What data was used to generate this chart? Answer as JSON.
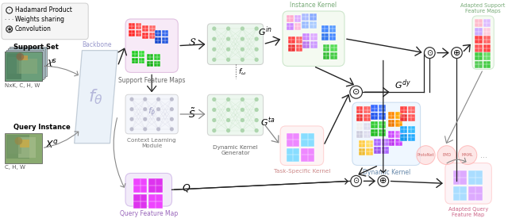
{
  "bg_color": "#ffffff",
  "legend_items": [
    {
      "label": "Hadamard Product"
    },
    {
      "label": "Weights sharing"
    },
    {
      "label": "Convolution"
    }
  ],
  "support_set_label": "Support Set",
  "support_xs_label": "$\\mathcal{X}^s$",
  "support_dims": "NxK, C, H, W",
  "query_label": "Query Instance",
  "query_xq_label": "$X^q$",
  "query_dims": "C, H, W",
  "backbone_label": "Backbone",
  "backbone_func": "$f_\\theta$",
  "backbone_color": "#dce8f5",
  "support_feat_label": "Support Feature Maps",
  "support_feat_color": "#f2daf2",
  "context_module_label": "Context Learning\nModule",
  "context_func": "$f_\\phi$",
  "context_color": "#e8ecf8",
  "dkg_label": "Dynamic Kernel\nGenerator",
  "dkg_color": "#e8f2e8",
  "query_feat_label": "Query Feature Map",
  "query_feat_color": "#e8dcf5",
  "instance_kernel_label": "Instance Kernel",
  "instance_kernel_color": "#e8f5e0",
  "dynamic_kernel_label": "Dynamic Kernel",
  "dynamic_kernel_color": "#ddeeff",
  "task_kernel_label": "Task-Specific Kernel",
  "task_kernel_color": "#fce8e8",
  "adapted_support_label": "Adapted Support\nFeature Maps",
  "adapted_support_color": "#e8f5e0",
  "adapted_query_label": "Adapted Query\nFeature Map",
  "adapted_query_color": "#fce8ee",
  "S_label": "$\\mathcal{S}$",
  "S_tilde_label": "$\\tilde{S}$",
  "Q_label": "$Q$",
  "Gin_label": "$G^{in}$",
  "Gta_label": "$G^{ta}$",
  "Gdy_label": "$G^{dy}$",
  "fw_label": "$f_\\omega$",
  "classifier_labels": [
    "ProtoNet",
    "EMD",
    "MAML"
  ],
  "arrow_color": "#222222",
  "gray_arrow_color": "#888888",
  "nn_color_top": "#d8eedd",
  "nn_color_bot": "#d8eedd",
  "nn_node_color": "#aad4aa",
  "nn_line_color": "#bbddbb",
  "nn_gray_node": "#cccccc",
  "nn_gray_line": "#dddddd"
}
